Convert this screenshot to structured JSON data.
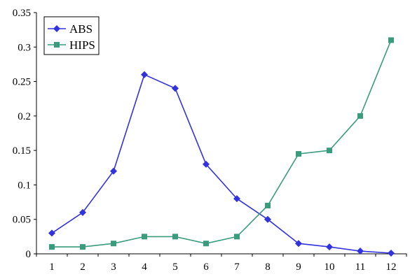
{
  "chart_data": {
    "type": "line",
    "title": "",
    "xlabel": "",
    "ylabel": "",
    "categories": [
      "1",
      "2",
      "3",
      "4",
      "5",
      "6",
      "7",
      "8",
      "9",
      "10",
      "11",
      "12"
    ],
    "ylim": [
      0,
      0.35
    ],
    "yticks": [
      "0",
      "0.05",
      "0.1",
      "0.15",
      "0.2",
      "0.25",
      "0.3",
      "0.35"
    ],
    "grid": false,
    "legend": "top-left",
    "series": [
      {
        "name": "ABS",
        "color": "#3333dd",
        "marker": "diamond",
        "values": [
          0.03,
          0.06,
          0.12,
          0.26,
          0.24,
          0.13,
          0.08,
          0.05,
          0.015,
          0.01,
          0.004,
          0.001
        ]
      },
      {
        "name": "HIPS",
        "color": "#3a9c7c",
        "marker": "square",
        "values": [
          0.01,
          0.01,
          0.015,
          0.025,
          0.025,
          0.015,
          0.025,
          0.07,
          0.145,
          0.15,
          0.2,
          0.31
        ]
      }
    ]
  }
}
